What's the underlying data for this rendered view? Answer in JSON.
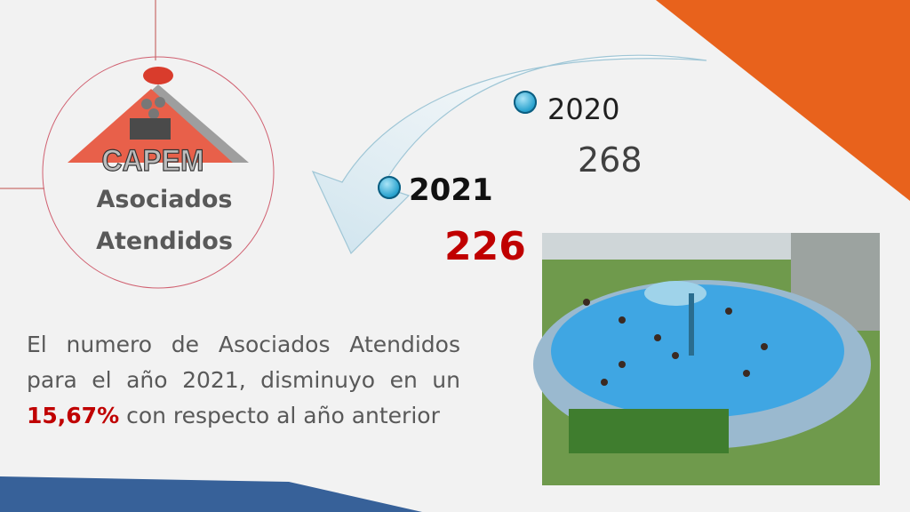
{
  "logo": {
    "text": "CAPEM"
  },
  "title": {
    "line1": "Asociados",
    "line2": "Atendidos"
  },
  "timeline": [
    {
      "year": "2020",
      "value": "268"
    },
    {
      "year": "2021",
      "value": "226"
    }
  ],
  "paragraph": {
    "part1": "El numero de Asociados Atendidos para el año 2021, disminuyo en un ",
    "highlight": "15,67%",
    "part2": " con respecto al año anterior"
  },
  "colors": {
    "accent_orange": "#e8621c",
    "accent_blue": "#376199",
    "highlight_red": "#c00000"
  },
  "photo": {
    "subject": "pool-photo"
  }
}
